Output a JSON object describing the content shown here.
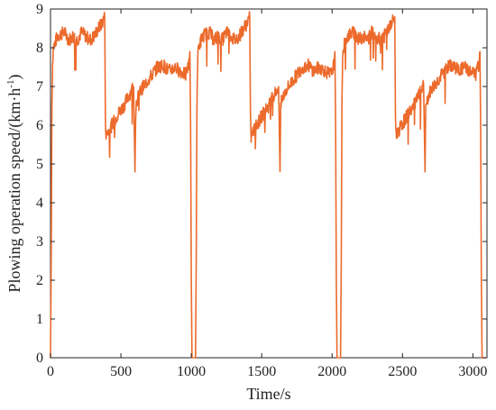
{
  "chart_data": {
    "type": "line",
    "title": "",
    "xlabel": "Time/s",
    "ylabel_main": "Plowing operation speed/(km·h",
    "ylabel_sup": "-1",
    "ylabel_close": ")",
    "xlim": [
      0,
      3100
    ],
    "ylim": [
      0,
      9
    ],
    "xticks": [
      0,
      500,
      1000,
      1500,
      2000,
      2500,
      3000
    ],
    "yticks": [
      0,
      1,
      2,
      3,
      4,
      5,
      6,
      7,
      8,
      9
    ],
    "grid": false,
    "legend": "none",
    "series": [
      {
        "color": "#ec6a2b",
        "cycle_offsets": [
          0,
          1030,
          2060
        ],
        "x": [
          0,
          5,
          10,
          15,
          20,
          30,
          50,
          70,
          100,
          130,
          160,
          190,
          220,
          250,
          280,
          310,
          340,
          360,
          385,
          390,
          395,
          400,
          420,
          450,
          480,
          520,
          560,
          590,
          600,
          605,
          610,
          640,
          680,
          720,
          760,
          800,
          840,
          880,
          920,
          960,
          985,
          990,
          995,
          1000,
          1005,
          1010,
          1015,
          1020,
          1025,
          1030
        ],
        "y": [
          0,
          2.5,
          6.5,
          7.6,
          8.0,
          8.1,
          8.3,
          8.35,
          8.4,
          8.2,
          8.3,
          8.2,
          8.4,
          8.3,
          8.2,
          8.3,
          8.5,
          8.6,
          8.8,
          6.2,
          5.7,
          5.8,
          5.9,
          6.1,
          6.3,
          6.5,
          6.8,
          7.0,
          4.8,
          6.4,
          6.6,
          6.9,
          7.1,
          7.3,
          7.5,
          7.55,
          7.4,
          7.5,
          7.4,
          7.3,
          7.6,
          7.9,
          6.0,
          2.0,
          0,
          0,
          0,
          0,
          0,
          0
        ]
      }
    ]
  },
  "colors": {
    "line": "#ec6a2b",
    "axis": "#222222",
    "background": "#ffffff"
  }
}
